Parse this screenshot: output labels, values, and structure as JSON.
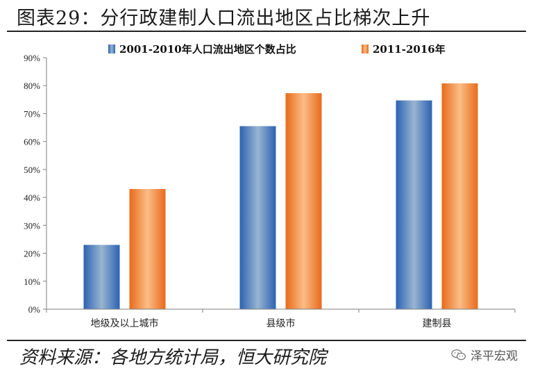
{
  "title": "图表29：分行政建制人口流出地区占比梯次上升",
  "source": "资料来源：各地方统计局，恒大研究院",
  "watermark": {
    "text": "泽平宏观",
    "icon": "wechat-icon"
  },
  "colors": {
    "series1": "#4f7fbd",
    "series2": "#f08a3c"
  },
  "chart_data": {
    "type": "bar",
    "categories": [
      "地级及以上城市",
      "县级市",
      "建制县"
    ],
    "series": [
      {
        "name": "2001-2010年人口流出地区个数占比",
        "values": [
          23,
          65.5,
          74.7
        ]
      },
      {
        "name": "2011-2016年",
        "values": [
          43,
          77.3,
          80.8
        ]
      }
    ],
    "yticks": [
      "0%",
      "10%",
      "20%",
      "30%",
      "40%",
      "50%",
      "60%",
      "70%",
      "80%",
      "90%"
    ],
    "ylim": [
      0,
      90
    ],
    "legend": "top-center",
    "grid": false,
    "xlabel": "",
    "ylabel": ""
  }
}
